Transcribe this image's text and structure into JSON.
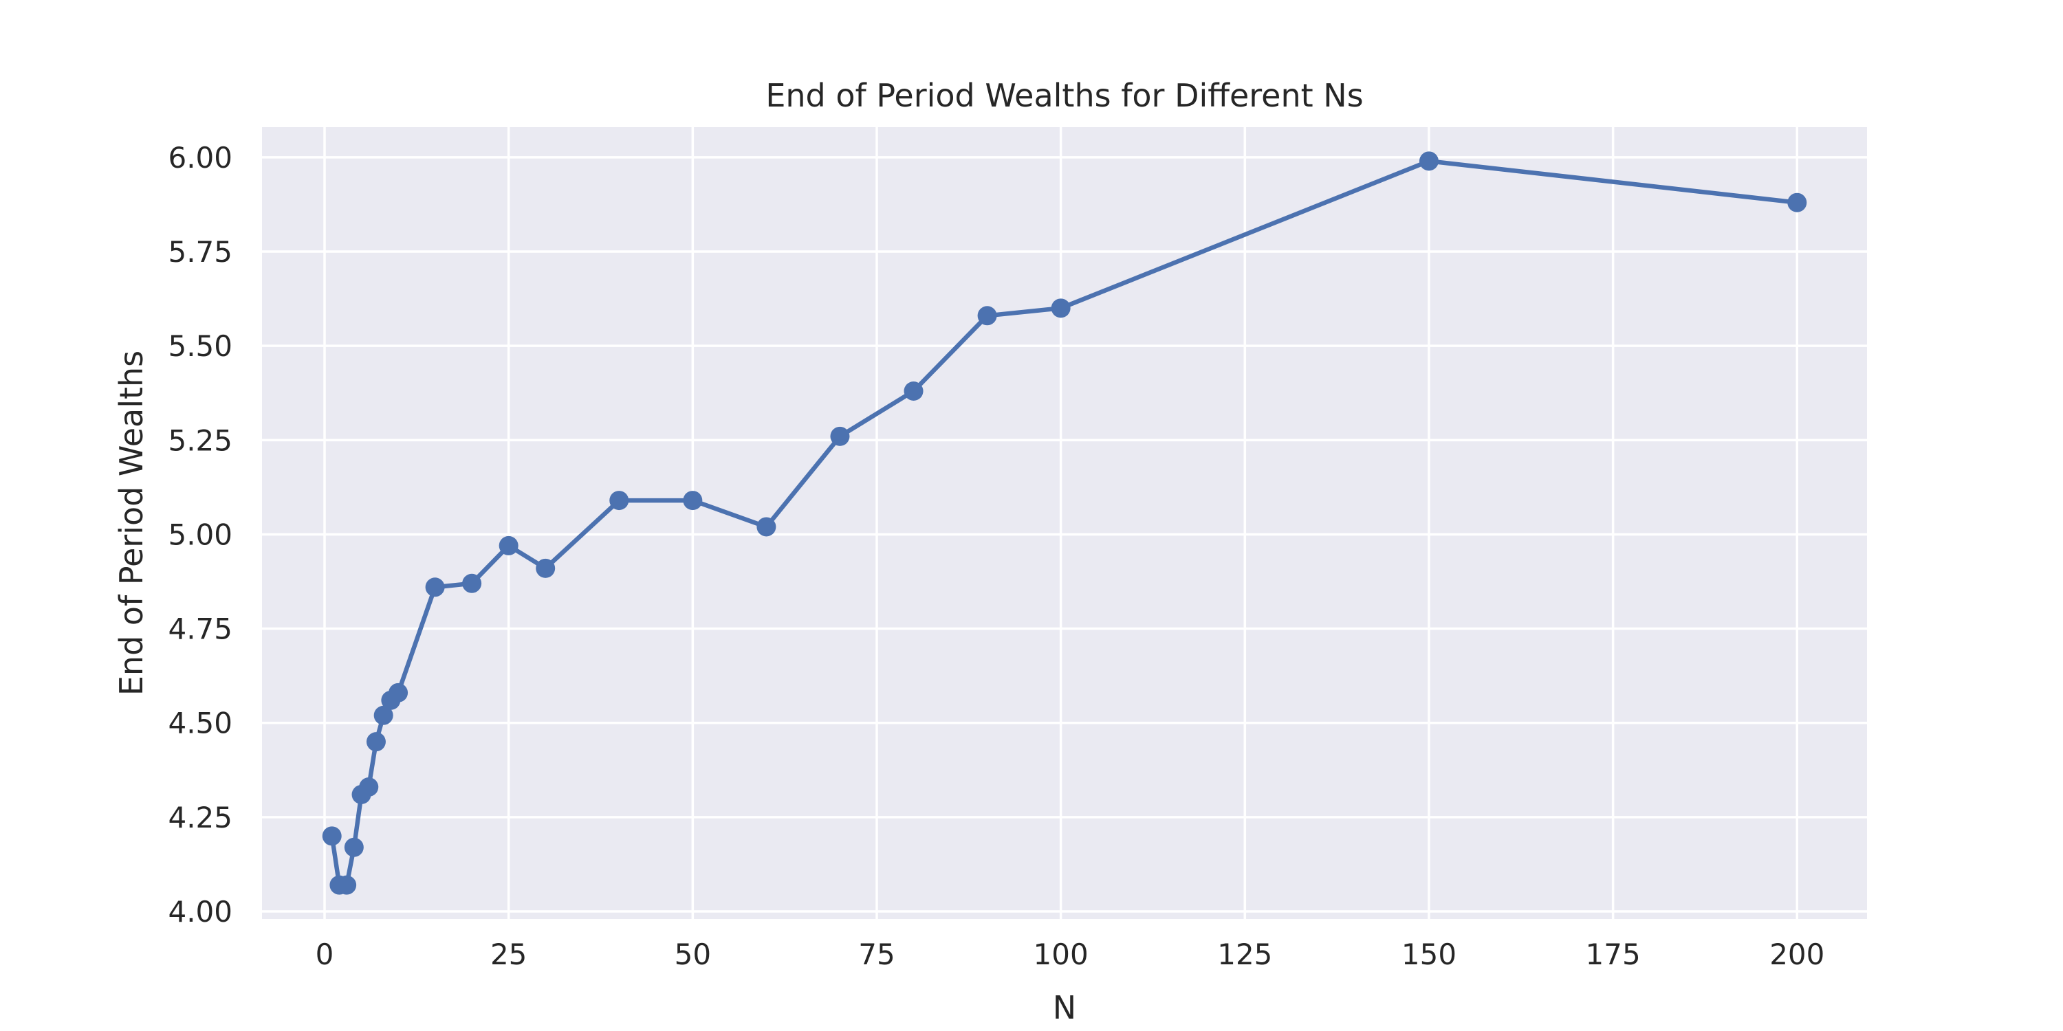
{
  "chart_data": {
    "type": "line",
    "title": "End of Period Wealths for Different Ns",
    "xlabel": "N",
    "ylabel": "End of Period Wealths",
    "xlim": [
      -8.5,
      209.5
    ],
    "ylim": [
      3.98,
      6.08
    ],
    "xticks": [
      0,
      25,
      50,
      75,
      100,
      125,
      150,
      175,
      200
    ],
    "xtick_labels": [
      "0",
      "25",
      "50",
      "75",
      "100",
      "125",
      "150",
      "175",
      "200"
    ],
    "yticks": [
      4.0,
      4.25,
      4.5,
      4.75,
      5.0,
      5.25,
      5.5,
      5.75,
      6.0
    ],
    "ytick_labels": [
      "4.00",
      "4.25",
      "4.50",
      "4.75",
      "5.00",
      "5.25",
      "5.50",
      "5.75",
      "6.00"
    ],
    "grid": true,
    "legend": "none",
    "series_color": "#4c72b0",
    "background_color": "#eaeaf2",
    "series": [
      {
        "x": [
          1,
          2,
          3,
          4,
          5,
          6,
          7,
          8,
          9,
          10,
          15,
          20,
          25,
          30,
          40,
          50,
          60,
          70,
          80,
          90,
          100,
          150,
          200
        ],
        "y": [
          4.2,
          4.07,
          4.07,
          4.17,
          4.31,
          4.33,
          4.45,
          4.52,
          4.56,
          4.58,
          4.86,
          4.87,
          4.97,
          4.91,
          5.09,
          5.09,
          5.02,
          5.26,
          5.38,
          5.58,
          5.6,
          5.99,
          5.88
        ]
      }
    ]
  }
}
